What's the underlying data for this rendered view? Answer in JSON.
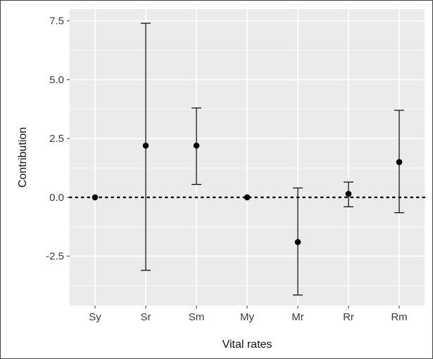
{
  "chart_data": {
    "type": "scatter",
    "subtype": "point-with-error-bars",
    "title": "",
    "xlabel": "Vital rates",
    "ylabel": "Contribution",
    "categories": [
      "Sy",
      "Sr",
      "Sm",
      "My",
      "Mr",
      "Rr",
      "Rm"
    ],
    "values": [
      0.0,
      2.2,
      2.2,
      0.0,
      -1.9,
      0.15,
      1.5
    ],
    "error_lower": [
      0.0,
      -3.1,
      0.55,
      0.0,
      -4.15,
      -0.4,
      -0.65
    ],
    "error_upper": [
      0.0,
      7.4,
      3.8,
      0.0,
      0.4,
      0.65,
      3.7
    ],
    "ylim": [
      -4.6,
      8.0
    ],
    "yticks": [
      -2.5,
      0.0,
      2.5,
      5.0,
      7.5
    ],
    "ytick_labels": [
      "-2.5",
      "0.0",
      "2.5",
      "5.0",
      "7.5"
    ],
    "reference_line": {
      "y": 0,
      "style": "dotted"
    },
    "grid": true,
    "legend": "none",
    "colors": {
      "panel_background": "#ebebeb",
      "grid": "#ffffff",
      "points": "#000000"
    }
  }
}
